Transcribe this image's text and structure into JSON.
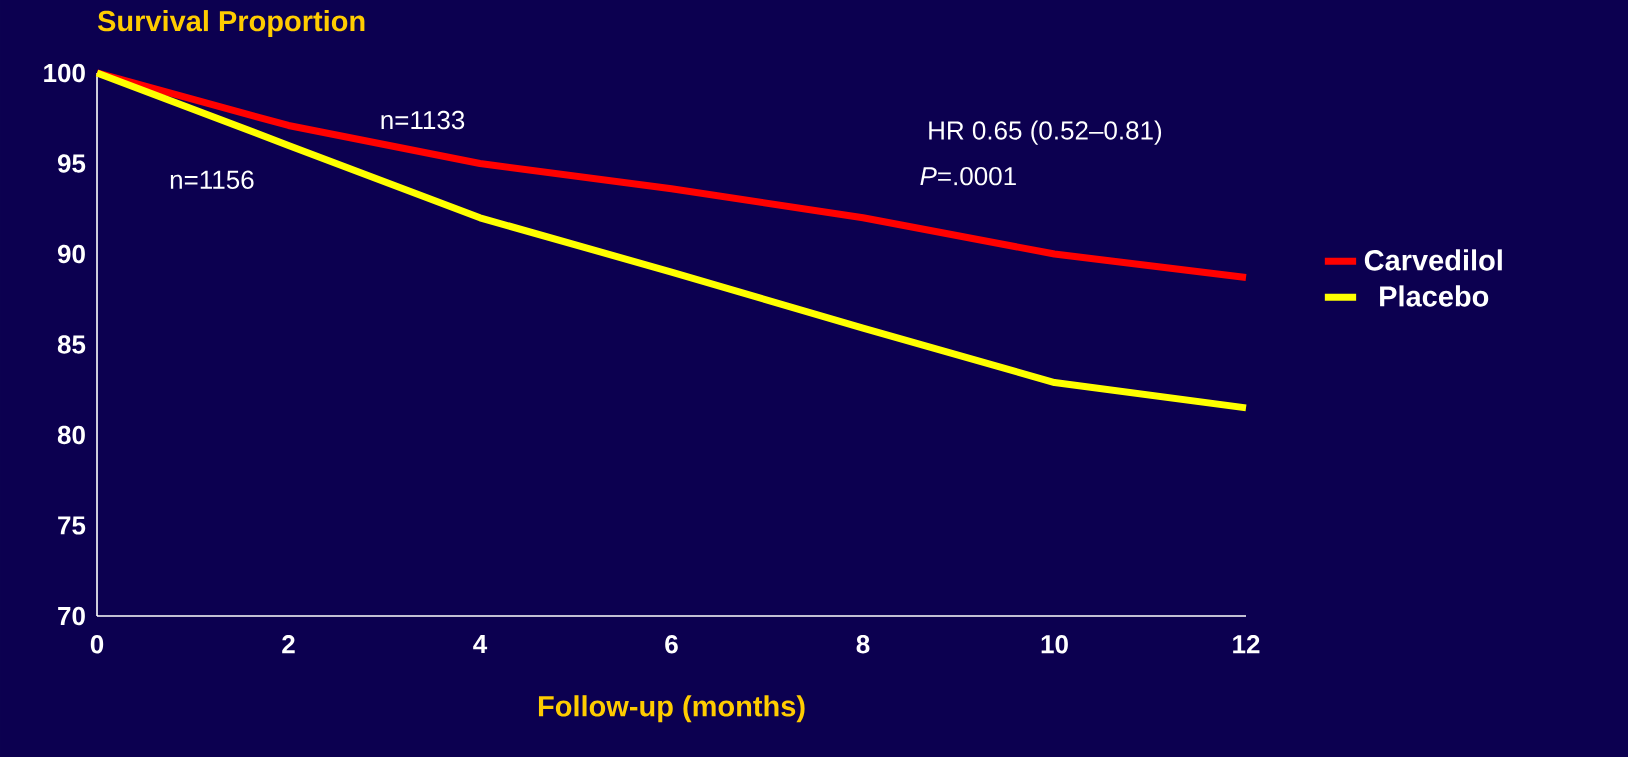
{
  "chart_data": {
    "type": "line",
    "title": "Survival Proportion",
    "xlabel": "Follow-up (months)",
    "x": [
      0,
      2,
      4,
      6,
      8,
      10,
      12
    ],
    "series": [
      {
        "name": "Carvedilol",
        "color": "#ff0000",
        "values": [
          100,
          97.1,
          95.0,
          93.6,
          92.0,
          90.0,
          88.7
        ]
      },
      {
        "name": "Placebo",
        "color": "#ffff00",
        "values": [
          100,
          96.0,
          92.0,
          89.0,
          85.9,
          82.9,
          81.5
        ]
      }
    ],
    "xlim": [
      0,
      12
    ],
    "xticks": [
      0,
      2,
      4,
      6,
      8,
      10,
      12
    ],
    "ylim": [
      70,
      100
    ],
    "yticks": [
      70,
      75,
      80,
      85,
      90,
      95,
      100
    ],
    "legend": "right",
    "annotations": [
      "n=1133",
      "n=1156",
      "HR 0.65 (0.52–0.81)",
      "*P*=.0001"
    ]
  }
}
